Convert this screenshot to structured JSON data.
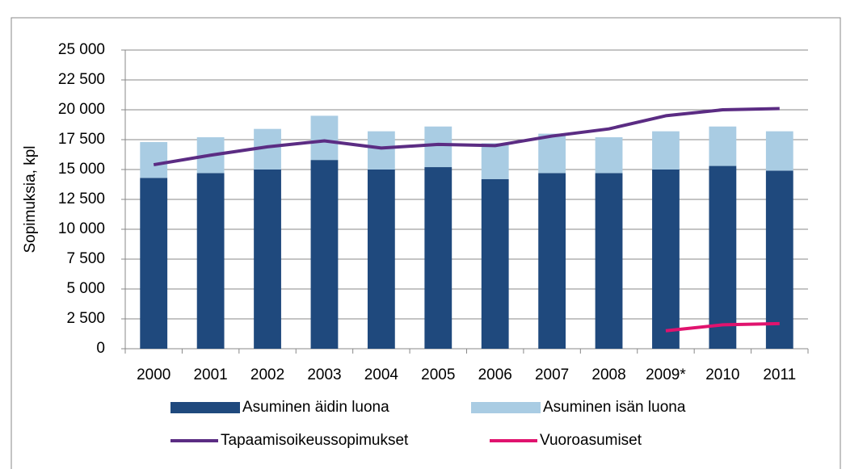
{
  "chart_data": {
    "type": "stacked_bar_line",
    "y_label": "Sopimuksia, kpl",
    "categories": [
      "2000",
      "2001",
      "2002",
      "2003",
      "2004",
      "2005",
      "2006",
      "2007",
      "2008",
      "2009*",
      "2010",
      "2011"
    ],
    "series": [
      {
        "name": "Asuminen äidin luona",
        "color": "#1f497d",
        "kind": "bar",
        "values": [
          14300,
          14700,
          15000,
          15800,
          15000,
          15200,
          14200,
          14700,
          14700,
          15000,
          15300,
          14900
        ]
      },
      {
        "name": "Asuminen isän luona",
        "color": "#a9cce3",
        "kind": "bar",
        "values": [
          3000,
          3000,
          3400,
          3700,
          3200,
          3400,
          3000,
          3300,
          3000,
          3200,
          3300,
          3300
        ]
      },
      {
        "name": "Tapaamisoikeussopimukset",
        "color": "#5b2c83",
        "kind": "line",
        "values": [
          15400,
          16200,
          16900,
          17400,
          16800,
          17100,
          17000,
          17800,
          18400,
          19500,
          20000,
          20100
        ]
      },
      {
        "name": "Vuoroasumiset",
        "color": "#e0136e",
        "kind": "line",
        "values": [
          null,
          null,
          null,
          null,
          null,
          null,
          null,
          null,
          null,
          1500,
          2000,
          2100
        ]
      }
    ],
    "ylim": [
      0,
      25000
    ],
    "yticks": [
      0,
      {
        "value": 2500,
        "label": "2 500"
      },
      {
        "value": 5000,
        "label": "5 000"
      },
      {
        "value": 7500,
        "label": "7 500"
      },
      {
        "value": 10000,
        "label": "10 000"
      },
      {
        "value": 12500,
        "label": "12 500"
      },
      {
        "value": 15000,
        "label": "15 000"
      },
      {
        "value": 17500,
        "label": "17 500"
      },
      {
        "value": 20000,
        "label": "20 000"
      },
      {
        "value": 22500,
        "label": "22 500"
      },
      {
        "value": 25000,
        "label": "25 000"
      }
    ],
    "grid": true
  }
}
